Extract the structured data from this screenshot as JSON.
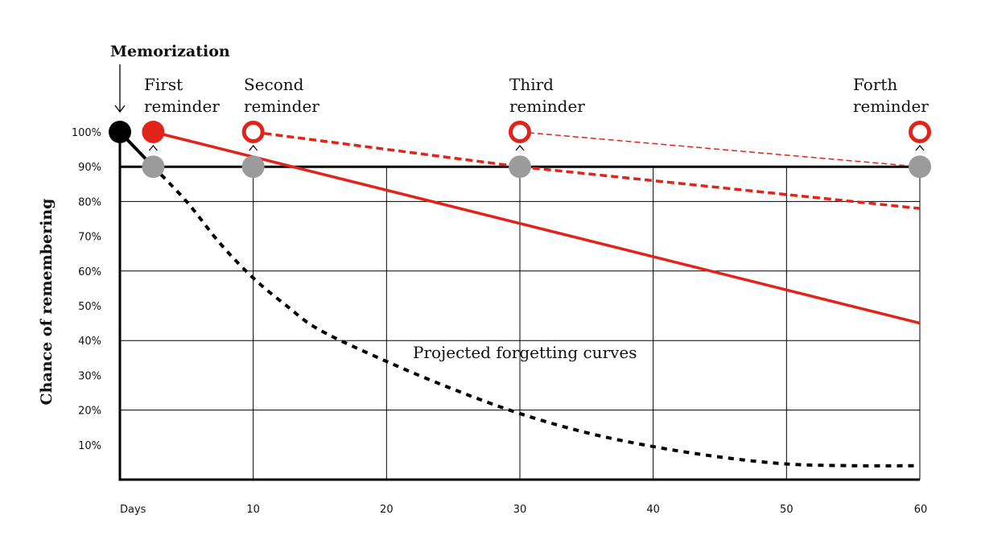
{
  "chart_data": {
    "type": "line",
    "ylabel": "Chance of remembering",
    "xlabel": "Days",
    "x_ticks": [
      10,
      20,
      30,
      40,
      50,
      60
    ],
    "y_ticks": [
      "100%",
      "90%",
      "80%",
      "70%",
      "60%",
      "50%",
      "40%",
      "30%",
      "20%",
      "10%"
    ],
    "xlim": [
      0,
      60
    ],
    "ylim": [
      0,
      100
    ],
    "annotations": {
      "memorization": "Memorization",
      "forgetting": "Projected forgetting curves",
      "reminders": [
        {
          "line1": "First",
          "line2": "reminder",
          "day": 2.5
        },
        {
          "line1": "Second",
          "line2": "reminder",
          "day": 10
        },
        {
          "line1": "Third",
          "line2": "reminder",
          "day": 30
        },
        {
          "line1": "Forth",
          "line2": "reminder",
          "day": 60
        }
      ]
    },
    "threshold": 90,
    "series": [
      {
        "style": "dotted-black",
        "color": "#000000",
        "x": [
          2.5,
          5,
          7.5,
          10,
          12.5,
          15,
          20,
          25,
          30,
          35,
          40,
          45,
          50,
          55,
          60
        ],
        "y": [
          90,
          80,
          68,
          58,
          50,
          43,
          34,
          26,
          19,
          13.5,
          9.5,
          6.5,
          4.5,
          4,
          4
        ]
      },
      {
        "style": "solid-red",
        "color": "#e2231a",
        "x": [
          2.5,
          60
        ],
        "y": [
          100,
          45
        ]
      },
      {
        "style": "dashed-red",
        "color": "#e2231a",
        "x": [
          10,
          30,
          60
        ],
        "y": [
          100,
          90,
          78
        ]
      },
      {
        "style": "thin-dashed-red",
        "color": "#e2231a",
        "x": [
          30,
          60
        ],
        "y": [
          100,
          90
        ]
      }
    ],
    "markers": {
      "memorization": {
        "x": 0,
        "y": 100,
        "color": "#000000"
      },
      "recall": [
        {
          "x": 2.5,
          "y": 90
        },
        {
          "x": 10,
          "y": 90
        },
        {
          "x": 30,
          "y": 90
        },
        {
          "x": 60,
          "y": 90
        }
      ],
      "reminders": [
        {
          "x": 2.5,
          "y": 100,
          "fill": "solid"
        },
        {
          "x": 10,
          "y": 100,
          "fill": "ring-dot"
        },
        {
          "x": 30,
          "y": 100,
          "fill": "ring"
        },
        {
          "x": 60,
          "y": 100,
          "fill": "ring"
        }
      ],
      "recall_color": "#9b9b9b",
      "reminder_color": "#e2231a"
    }
  }
}
